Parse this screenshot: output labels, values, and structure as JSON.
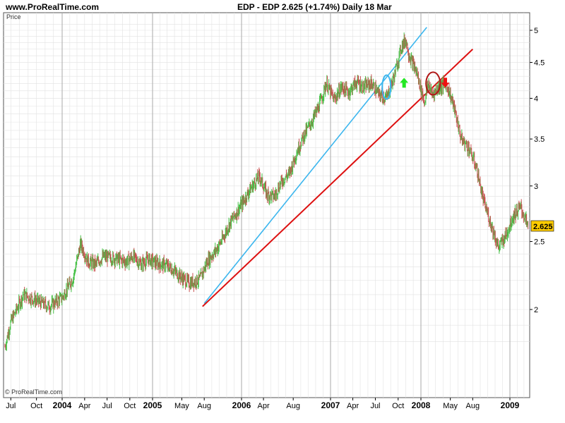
{
  "header": {
    "site": "www.ProRealTime.com",
    "title": "EDP - EDP    2.625 (+1.74%)    Daily  18 Mar"
  },
  "footer": {
    "copyright": "© ProRealTime.com"
  },
  "colors": {
    "up": "#44c044",
    "down": "#c85050",
    "blue_line": "#3cb6ee",
    "red_line": "#dd1010",
    "arrow_up": "#22e822",
    "arrow_down": "#ee1111",
    "last_price_bg": "#ffcc00",
    "grid": "#e2e2e2",
    "grid_major": "#aaaaaa"
  },
  "chart_data": {
    "type": "line",
    "title": "EDP - EDP    2.625 (+1.74%)    Daily  18 Mar",
    "ylabel": "Price",
    "y_scale": "log",
    "ylim": [
      1.7,
      5.2
    ],
    "y_ticks": [
      "2",
      "2.5",
      "3",
      "3.5",
      "4",
      "4.5",
      "5"
    ],
    "x_ticks": [
      "Jul",
      "Oct",
      "2004",
      "Apr",
      "Jul",
      "Oct",
      "2005",
      "May",
      "Aug",
      "2006",
      "Apr",
      "Aug",
      "2007",
      "Apr",
      "Jul",
      "Oct",
      "2008",
      "May",
      "Aug",
      "2009"
    ],
    "last_price": "2.625",
    "grid": true,
    "series": [
      {
        "name": "EDP",
        "x": [
          "2003-06-10",
          "2003-07-01",
          "2003-08-15",
          "2003-10-01",
          "2003-11-15",
          "2004-01-01",
          "2004-02-15",
          "2004-03-15",
          "2004-04-15",
          "2004-05-15",
          "2004-06-15",
          "2004-07-15",
          "2004-08-15",
          "2004-09-15",
          "2004-10-15",
          "2004-11-15",
          "2004-12-15",
          "2005-01-15",
          "2005-03-01",
          "2005-04-01",
          "2005-05-01",
          "2005-06-01",
          "2005-07-15",
          "2005-08-15",
          "2005-09-15",
          "2005-10-15",
          "2005-11-15",
          "2006-01-01",
          "2006-02-01",
          "2006-03-15",
          "2006-04-15",
          "2006-05-15",
          "2006-06-15",
          "2006-07-15",
          "2006-08-15",
          "2006-09-15",
          "2006-10-15",
          "2006-11-15",
          "2006-12-15",
          "2007-01-15",
          "2007-02-15",
          "2007-03-15",
          "2007-04-15",
          "2007-05-15",
          "2007-06-15",
          "2007-07-15",
          "2007-08-15",
          "2007-09-15",
          "2007-10-15",
          "2007-11-01",
          "2007-11-15",
          "2007-12-15",
          "2008-01-15",
          "2008-02-01",
          "2008-02-15",
          "2008-03-15",
          "2008-04-15",
          "2008-05-15",
          "2008-06-15",
          "2008-07-15",
          "2008-08-15",
          "2008-09-15",
          "2008-10-15",
          "2008-11-15",
          "2008-12-15",
          "2009-01-15",
          "2009-02-15",
          "2009-03-18"
        ],
        "values": [
          1.77,
          1.92,
          2.1,
          2.06,
          2.02,
          2.08,
          2.22,
          2.48,
          2.34,
          2.32,
          2.38,
          2.37,
          2.36,
          2.34,
          2.38,
          2.32,
          2.36,
          2.33,
          2.31,
          2.27,
          2.22,
          2.18,
          2.21,
          2.35,
          2.42,
          2.52,
          2.66,
          2.82,
          2.95,
          3.1,
          2.92,
          2.9,
          3.05,
          3.12,
          3.35,
          3.55,
          3.7,
          3.9,
          4.2,
          3.98,
          4.15,
          4.08,
          4.22,
          4.15,
          4.2,
          4.05,
          4.0,
          4.3,
          4.75,
          4.85,
          4.6,
          4.35,
          3.95,
          4.2,
          4.05,
          4.15,
          4.2,
          3.9,
          3.5,
          3.4,
          3.2,
          2.85,
          2.65,
          2.45,
          2.55,
          2.72,
          2.8,
          2.625
        ]
      }
    ],
    "trendlines": [
      {
        "name": "",
        "color": "blue",
        "from": {
          "x": "2005-08-01",
          "y": 2.04
        },
        "to": {
          "x": "2008-01-25",
          "y": 5.05
        }
      },
      {
        "name": "",
        "color": "red",
        "from": {
          "x": "2005-07-25",
          "y": 2.02
        },
        "to": {
          "x": "2008-08-01",
          "y": 4.7
        }
      }
    ],
    "markers": [
      {
        "kind": "ellipse",
        "color": "blue",
        "x": "2007-08-15",
        "y": 4.15
      },
      {
        "kind": "ellipse",
        "color": "red",
        "x": "2008-02-20",
        "y": 4.2
      },
      {
        "kind": "arrow-up",
        "color": "green",
        "x": "2007-10-25",
        "y": 4.2
      },
      {
        "kind": "arrow-down",
        "color": "red",
        "x": "2008-04-10",
        "y": 4.22
      }
    ]
  }
}
